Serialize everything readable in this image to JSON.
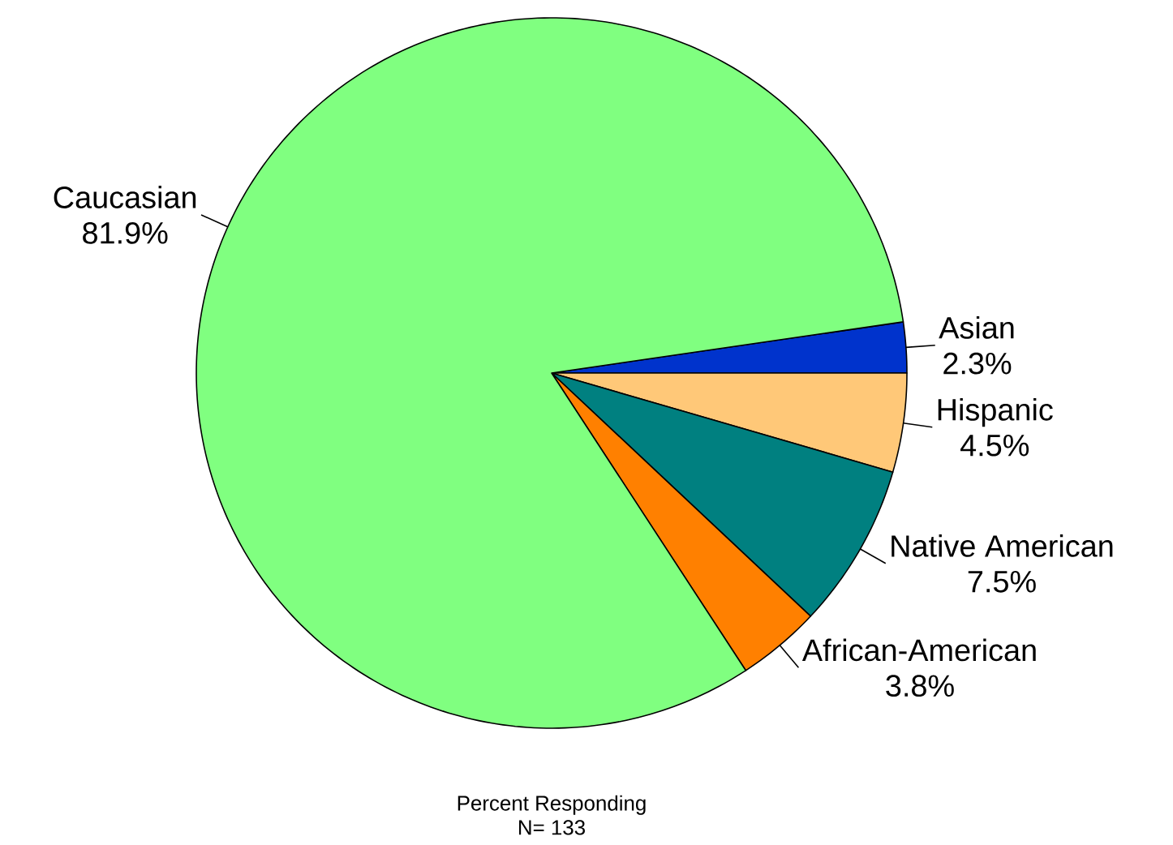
{
  "chart_data": {
    "type": "pie",
    "categories": [
      "Asian",
      "Hispanic",
      "Native American",
      "African-American",
      "Caucasian"
    ],
    "values": [
      2.3,
      4.5,
      7.5,
      3.8,
      81.9
    ],
    "value_labels": [
      "2.3%",
      "4.5%",
      "7.5%",
      "3.8%",
      "81.9%"
    ],
    "colors": [
      "#0033cc",
      "#ffc878",
      "#008080",
      "#ff8000",
      "#80ff80"
    ],
    "annotations": [
      "Percent Responding",
      "N= 133"
    ]
  }
}
